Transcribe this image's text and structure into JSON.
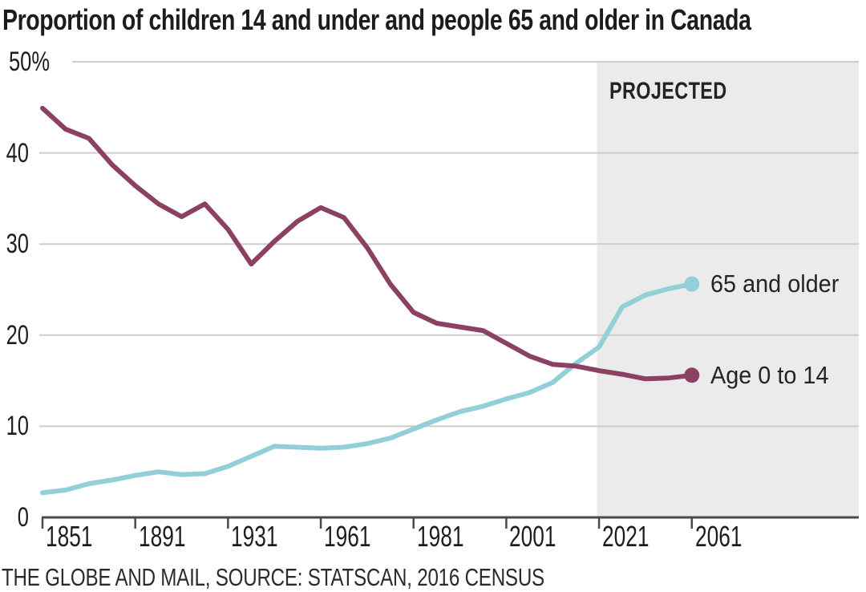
{
  "title": "Proportion of children 14 and under and people 65 and older in Canada",
  "source_line": "THE GLOBE AND MAIL, SOURCE: STATSCAN, 2016 CENSUS",
  "colors": {
    "children_line": "#8b4162",
    "seniors_line": "#93cfd7",
    "projected_region_bg": "#ebebeb",
    "gridline": "#cdcdcd",
    "axis": "#4a4a4a",
    "text": "#1e1e1e"
  },
  "chart_data": {
    "type": "line",
    "title": "Proportion of children 14 and under and people 65 and older in Canada",
    "xlabel": "",
    "ylabel": "%",
    "ylim": [
      0,
      50
    ],
    "grid": true,
    "legend_position": "end-of-line-labels",
    "y_ticks": [
      {
        "label": "50%",
        "value": 50
      },
      {
        "label": "40",
        "value": 40
      },
      {
        "label": "30",
        "value": 30
      },
      {
        "label": "20",
        "value": 20
      },
      {
        "label": "10",
        "value": 10
      },
      {
        "label": "0",
        "value": 0
      }
    ],
    "x_ticks": [
      1851,
      1891,
      1931,
      1961,
      1981,
      2001,
      2021,
      2061
    ],
    "projection": {
      "label": "PROJECTED",
      "from_year": 2021
    },
    "series": [
      {
        "name": "Age 0 to 14",
        "color": "#8b4162",
        "points": [
          [
            1851,
            44.9
          ],
          [
            1861,
            42.6
          ],
          [
            1871,
            41.6
          ],
          [
            1881,
            38.7
          ],
          [
            1891,
            36.4
          ],
          [
            1901,
            34.4
          ],
          [
            1911,
            33.0
          ],
          [
            1921,
            34.4
          ],
          [
            1931,
            31.6
          ],
          [
            1941,
            27.8
          ],
          [
            1951,
            30.3
          ],
          [
            1956,
            32.5
          ],
          [
            1961,
            34.0
          ],
          [
            1966,
            32.9
          ],
          [
            1971,
            29.6
          ],
          [
            1976,
            25.6
          ],
          [
            1981,
            22.5
          ],
          [
            1986,
            21.3
          ],
          [
            1991,
            20.9
          ],
          [
            1996,
            20.5
          ],
          [
            2001,
            19.1
          ],
          [
            2006,
            17.7
          ],
          [
            2011,
            16.8
          ],
          [
            2016,
            16.6
          ],
          [
            2021,
            16.1
          ],
          [
            2031,
            15.7
          ],
          [
            2041,
            15.2
          ],
          [
            2051,
            15.3
          ],
          [
            2061,
            15.6
          ]
        ]
      },
      {
        "name": "65 and older",
        "color": "#93cfd7",
        "points": [
          [
            1851,
            2.7
          ],
          [
            1861,
            3.0
          ],
          [
            1871,
            3.7
          ],
          [
            1881,
            4.1
          ],
          [
            1891,
            4.6
          ],
          [
            1901,
            5.0
          ],
          [
            1911,
            4.7
          ],
          [
            1921,
            4.8
          ],
          [
            1931,
            5.6
          ],
          [
            1941,
            6.7
          ],
          [
            1951,
            7.8
          ],
          [
            1956,
            7.7
          ],
          [
            1961,
            7.6
          ],
          [
            1966,
            7.7
          ],
          [
            1971,
            8.1
          ],
          [
            1976,
            8.7
          ],
          [
            1981,
            9.7
          ],
          [
            1986,
            10.7
          ],
          [
            1991,
            11.6
          ],
          [
            1996,
            12.2
          ],
          [
            2001,
            13.0
          ],
          [
            2006,
            13.7
          ],
          [
            2011,
            14.8
          ],
          [
            2016,
            16.9
          ],
          [
            2021,
            18.7
          ],
          [
            2031,
            23.1
          ],
          [
            2041,
            24.4
          ],
          [
            2051,
            25.1
          ],
          [
            2061,
            25.6
          ]
        ]
      }
    ]
  }
}
